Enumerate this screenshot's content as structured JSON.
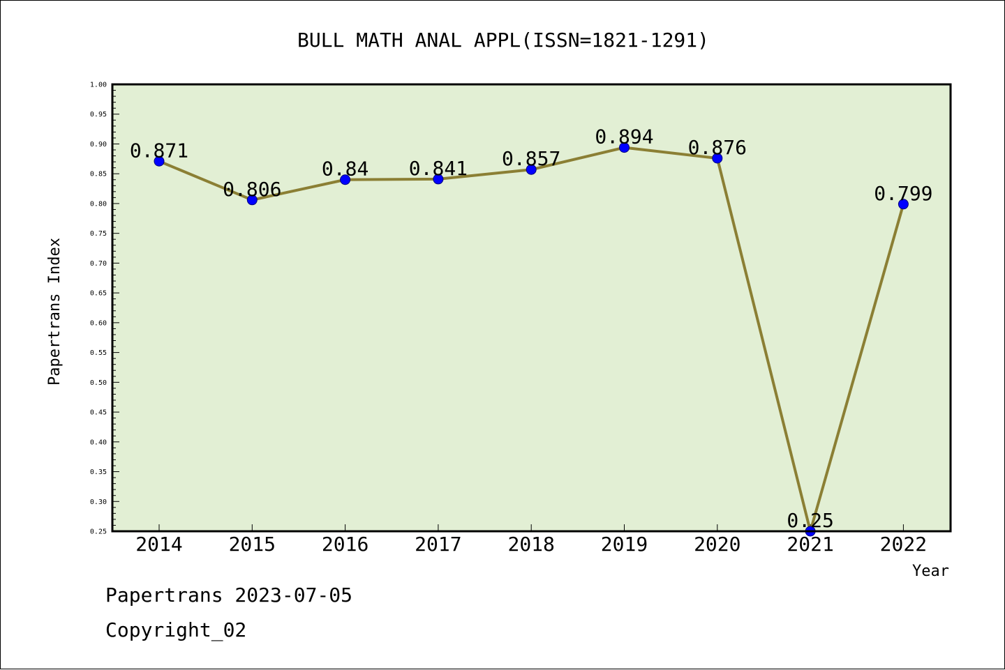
{
  "colors": {
    "plot_background": "#e2efd4",
    "line": "#8b7f34",
    "marker": "#0000ff",
    "marker_edge": "#00007a"
  },
  "chart_data": {
    "type": "line",
    "title": "BULL MATH ANAL APPL(ISSN=1821-1291)",
    "xlabel": "Year",
    "ylabel": "Papertrans Index",
    "categories": [
      "2014",
      "2015",
      "2016",
      "2017",
      "2018",
      "2019",
      "2020",
      "2021",
      "2022"
    ],
    "series": [
      {
        "values": [
          0.871,
          0.806,
          0.84,
          0.841,
          0.857,
          0.894,
          0.876,
          0.25,
          0.799
        ],
        "labels": [
          "0.871",
          "0.806",
          "0.84",
          "0.841",
          "0.857",
          "0.894",
          "0.876",
          "0.25",
          "0.799"
        ]
      }
    ],
    "ylim": [
      0.25,
      1.0
    ],
    "yticks": [
      "0.25",
      "0.30",
      "0.35",
      "0.40",
      "0.45",
      "0.50",
      "0.55",
      "0.60",
      "0.65",
      "0.70",
      "0.75",
      "0.80",
      "0.85",
      "0.90",
      "0.95",
      "1.00"
    ],
    "grid": false,
    "legend": "none"
  },
  "footer": {
    "line1": "Papertrans 2023-07-05",
    "line2": "Copyright_02"
  }
}
